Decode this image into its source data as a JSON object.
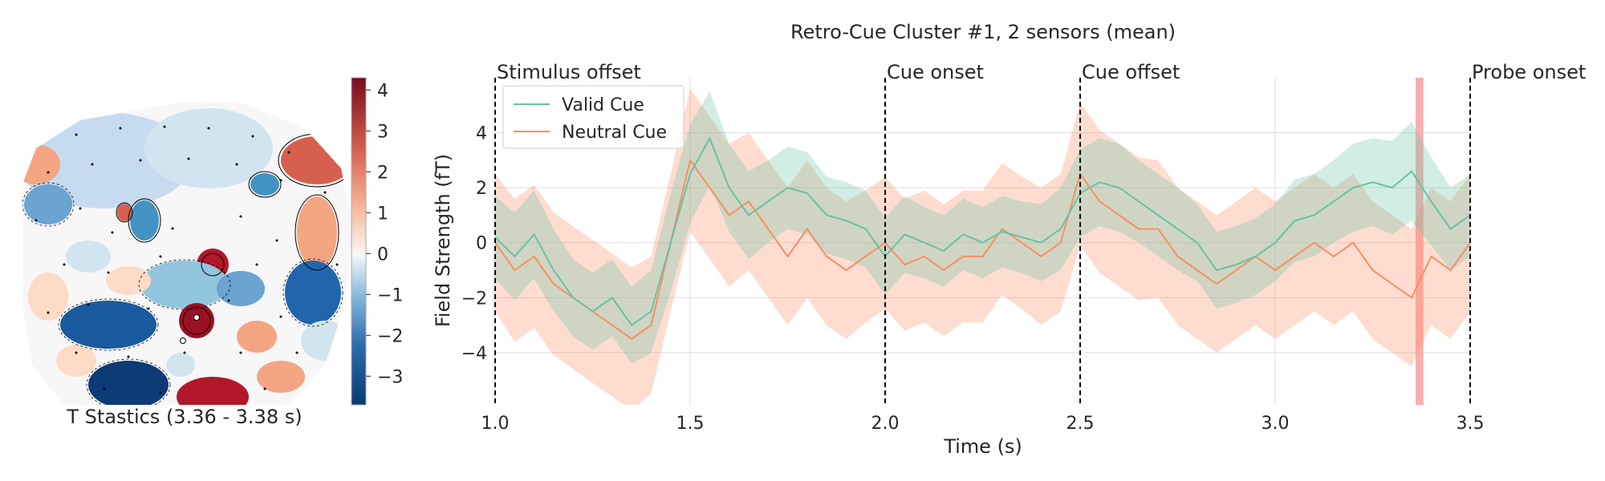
{
  "chart_data": [
    {
      "type": "heatmap",
      "title": "T Stastics (3.36 - 3.38 s)",
      "colorbar": {
        "colormap": "RdBu_r",
        "range": [
          -3.7,
          4.3
        ],
        "ticks": [
          -3,
          -2,
          -1,
          0,
          1,
          2,
          3,
          4
        ],
        "tick_labels": [
          "−3",
          "−2",
          "−1",
          "0",
          "1",
          "2",
          "3",
          "4"
        ]
      },
      "sensor_highlights": 2,
      "colors": {
        "negative": "#1a5a9e",
        "positive": "#b2182b",
        "zero": "#f7f7f7"
      }
    },
    {
      "type": "line",
      "title": "Retro-Cue Cluster #1, 2 sensors (mean)",
      "xlabel": "Time (s)",
      "ylabel": "Field Strength (fT)",
      "xlim": [
        1.0,
        3.5
      ],
      "ylim": [
        -5.9,
        6.0
      ],
      "xticks": [
        1.0,
        1.5,
        2.0,
        2.5,
        3.0,
        3.5
      ],
      "xtick_labels": [
        "1.0",
        "1.5",
        "2.0",
        "2.5",
        "3.0",
        "3.5"
      ],
      "yticks": [
        -4,
        -2,
        0,
        2,
        4
      ],
      "ytick_labels": [
        "−4",
        "−2",
        "0",
        "2",
        "4"
      ],
      "grid": true,
      "legend": "upper-left",
      "events": [
        {
          "label": "Stimulus offset",
          "x": 1.0
        },
        {
          "label": "Cue onset",
          "x": 2.0
        },
        {
          "label": "Cue offset",
          "x": 2.5
        },
        {
          "label": "Probe onset",
          "x": 3.5
        }
      ],
      "highlight_window": [
        3.36,
        3.38
      ],
      "highlight_color": "#f8a6a6",
      "series": [
        {
          "name": "Valid Cue",
          "color": "#66c2a5",
          "x": [
            1.0,
            1.05,
            1.1,
            1.15,
            1.2,
            1.25,
            1.3,
            1.35,
            1.4,
            1.45,
            1.5,
            1.55,
            1.6,
            1.65,
            1.7,
            1.75,
            1.8,
            1.85,
            1.9,
            1.95,
            2.0,
            2.05,
            2.1,
            2.15,
            2.2,
            2.25,
            2.3,
            2.35,
            2.4,
            2.45,
            2.5,
            2.55,
            2.6,
            2.65,
            2.7,
            2.75,
            2.8,
            2.85,
            2.9,
            2.95,
            3.0,
            3.05,
            3.1,
            3.15,
            3.2,
            3.25,
            3.3,
            3.35,
            3.4,
            3.45,
            3.5
          ],
          "y": [
            0.2,
            -0.5,
            0.3,
            -1.0,
            -2.0,
            -2.5,
            -2.0,
            -3.0,
            -2.5,
            0.0,
            2.5,
            3.8,
            2.0,
            1.0,
            1.5,
            2.0,
            1.8,
            1.0,
            0.8,
            0.5,
            -0.5,
            0.3,
            0.0,
            -0.3,
            0.3,
            0.0,
            0.4,
            0.2,
            0.0,
            0.5,
            1.8,
            2.2,
            2.0,
            1.5,
            1.0,
            0.5,
            0.0,
            -1.0,
            -0.8,
            -0.5,
            0.0,
            0.8,
            1.0,
            1.5,
            2.0,
            2.2,
            2.0,
            2.6,
            1.5,
            0.5,
            1.0
          ],
          "band": [
            1.5,
            1.6,
            1.6,
            1.5,
            1.4,
            1.4,
            1.4,
            1.4,
            1.5,
            1.8,
            1.8,
            1.7,
            1.6,
            1.6,
            1.5,
            1.5,
            1.5,
            1.4,
            1.4,
            1.4,
            1.4,
            1.4,
            1.3,
            1.3,
            1.3,
            1.3,
            1.3,
            1.3,
            1.4,
            1.5,
            1.6,
            1.6,
            1.6,
            1.5,
            1.5,
            1.5,
            1.4,
            1.4,
            1.4,
            1.4,
            1.4,
            1.5,
            1.5,
            1.5,
            1.6,
            1.6,
            1.7,
            1.8,
            1.6,
            1.5,
            1.5
          ]
        },
        {
          "name": "Neutral Cue",
          "color": "#fc8d62",
          "x": [
            1.0,
            1.05,
            1.1,
            1.15,
            1.2,
            1.25,
            1.3,
            1.35,
            1.4,
            1.45,
            1.5,
            1.55,
            1.6,
            1.65,
            1.7,
            1.75,
            1.8,
            1.85,
            1.9,
            1.95,
            2.0,
            2.05,
            2.1,
            2.15,
            2.2,
            2.25,
            2.3,
            2.35,
            2.4,
            2.45,
            2.5,
            2.55,
            2.6,
            2.65,
            2.7,
            2.75,
            2.8,
            2.85,
            2.9,
            2.95,
            3.0,
            3.05,
            3.1,
            3.15,
            3.2,
            3.25,
            3.3,
            3.35,
            3.4,
            3.45,
            3.5
          ],
          "y": [
            0.0,
            -1.0,
            -0.5,
            -1.5,
            -2.0,
            -2.5,
            -3.0,
            -3.5,
            -3.0,
            0.0,
            3.0,
            2.0,
            1.0,
            1.5,
            0.5,
            -0.5,
            0.5,
            -0.5,
            -1.0,
            -0.5,
            0.0,
            -0.8,
            -0.5,
            -1.0,
            -0.5,
            -0.5,
            0.5,
            0.0,
            -0.5,
            0.0,
            2.5,
            1.5,
            1.0,
            0.5,
            0.5,
            -0.5,
            -1.0,
            -1.5,
            -1.0,
            -0.5,
            -1.0,
            -0.5,
            0.0,
            -0.5,
            0.0,
            -1.0,
            -1.5,
            -2.0,
            -0.5,
            -1.0,
            0.0
          ],
          "band": [
            2.5,
            2.6,
            2.6,
            2.6,
            2.6,
            2.6,
            2.6,
            2.6,
            2.5,
            2.5,
            2.6,
            2.6,
            2.6,
            2.5,
            2.5,
            2.5,
            2.5,
            2.5,
            2.5,
            2.4,
            2.4,
            2.4,
            2.4,
            2.4,
            2.4,
            2.4,
            2.4,
            2.4,
            2.5,
            2.5,
            2.6,
            2.6,
            2.6,
            2.6,
            2.5,
            2.5,
            2.5,
            2.5,
            2.5,
            2.5,
            2.5,
            2.5,
            2.5,
            2.5,
            2.5,
            2.5,
            2.5,
            2.5,
            2.5,
            2.5,
            2.5
          ]
        }
      ]
    }
  ]
}
